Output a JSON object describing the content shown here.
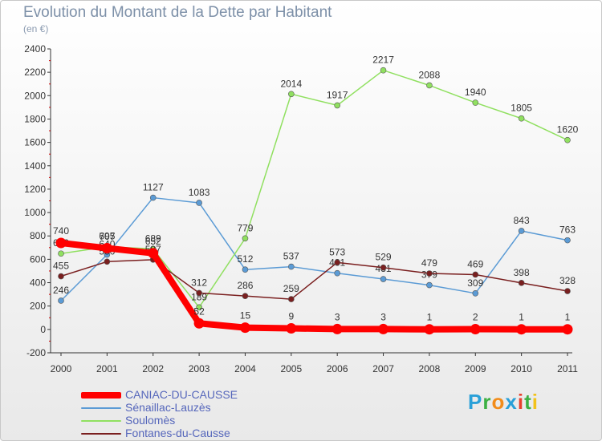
{
  "title": "Evolution du Montant de la Dette par Habitant",
  "subtitle": "(en €)",
  "logo": {
    "text": "Proxiti",
    "colors": [
      "#2aa0d8",
      "#3cb043",
      "#f28c1a",
      "#2aa0d8",
      "#e8402e",
      "#3cb043",
      "#f2c21a"
    ]
  },
  "chart_data": {
    "type": "line",
    "x": [
      "2000",
      "2001",
      "2002",
      "2003",
      "2004",
      "2005",
      "2006",
      "2007",
      "2008",
      "2009",
      "2010",
      "2011"
    ],
    "ylim": [
      -200,
      2400
    ],
    "yticks": [
      "-200",
      "0",
      "200",
      "400",
      "600",
      "800",
      "1000",
      "1200",
      "1400",
      "1600",
      "1800",
      "2000",
      "2200",
      "2400"
    ],
    "grid": false,
    "legend_position": "bottom-left",
    "series": [
      {
        "name": "Sénaillac-Lauzès",
        "color": "#5b9bd5",
        "width": 1.5,
        "values": [
          246,
          640,
          1127,
          1083,
          512,
          537,
          481,
          431,
          379,
          309,
          843,
          763
        ],
        "labels": [
          "246",
          "640",
          "1127",
          "1083",
          "512",
          "537",
          "481",
          "431",
          "379",
          "309",
          "843",
          "763"
        ]
      },
      {
        "name": "Soulomès",
        "color": "#90e060",
        "width": 1.5,
        "values": [
          649,
          707,
          689,
          189,
          779,
          2014,
          1917,
          2217,
          2088,
          1940,
          1805,
          1620
        ],
        "labels": [
          "649",
          "707",
          "689",
          "189",
          "779",
          "2014",
          "1917",
          "2217",
          "2088",
          "1940",
          "1805",
          "1620"
        ]
      },
      {
        "name": "Fontanes-du-Causse",
        "color": "#7a1f1f",
        "width": 1.5,
        "values": [
          455,
          580,
          597,
          312,
          286,
          259,
          573,
          529,
          479,
          469,
          398,
          328
        ],
        "labels": [
          "455",
          "580",
          "597",
          "312",
          "286",
          "259",
          "573",
          "529",
          "479",
          "469",
          "398",
          "328"
        ]
      },
      {
        "name": "CANIAC-DU-CAUSSE",
        "color": "#ff0000",
        "width": 8,
        "values": [
          740,
          695,
          652,
          52,
          15,
          9,
          3,
          3,
          1,
          2,
          1,
          1
        ],
        "labels": [
          "740",
          "695",
          "652",
          "52",
          "15",
          "9",
          "3",
          "3",
          "1",
          "2",
          "1",
          "1"
        ]
      }
    ]
  }
}
